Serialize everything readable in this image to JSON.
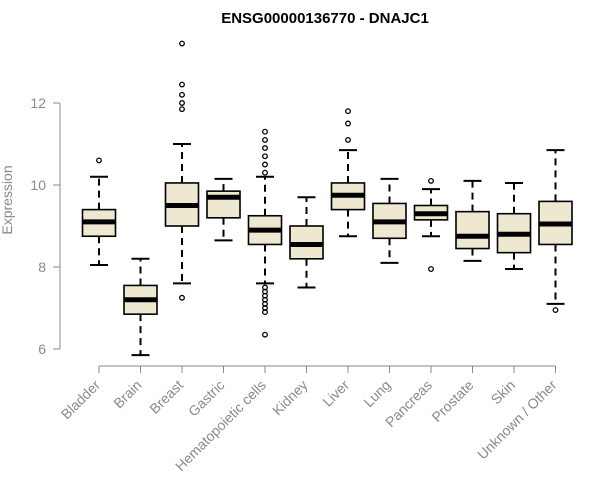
{
  "chart_data": {
    "type": "boxplot",
    "title": "ENSG00000136770 - DNAJC1",
    "xlabel": "",
    "ylabel": "Expression",
    "ylim": [
      5.8,
      13.5
    ],
    "yticks": [
      6,
      8,
      10,
      12
    ],
    "colors": {
      "box_fill": "#efe8d0",
      "box_stroke": "#000000",
      "axis": "#8a8a8a"
    },
    "categories": [
      "Bladder",
      "Brain",
      "Breast",
      "Gastric",
      "Hematopoietic cells",
      "Kidney",
      "Liver",
      "Lung",
      "Pancreas",
      "Prostate",
      "Skin",
      "Unknown / Other"
    ],
    "boxes": [
      {
        "name": "Bladder",
        "whisker_low": 8.05,
        "q1": 8.75,
        "median": 9.1,
        "q3": 9.4,
        "whisker_high": 10.2,
        "outliers": [
          10.6
        ]
      },
      {
        "name": "Brain",
        "whisker_low": 5.85,
        "q1": 6.85,
        "median": 7.2,
        "q3": 7.55,
        "whisker_high": 8.2,
        "outliers": []
      },
      {
        "name": "Breast",
        "whisker_low": 7.6,
        "q1": 9.0,
        "median": 9.5,
        "q3": 10.05,
        "whisker_high": 11.0,
        "outliers": [
          7.25,
          11.85,
          12.0,
          12.2,
          12.45,
          13.45
        ]
      },
      {
        "name": "Gastric",
        "whisker_low": 8.65,
        "q1": 9.2,
        "median": 9.7,
        "q3": 9.85,
        "whisker_high": 10.15,
        "outliers": []
      },
      {
        "name": "Hematopoietic cells",
        "whisker_low": 7.6,
        "q1": 8.55,
        "median": 8.9,
        "q3": 9.25,
        "whisker_high": 10.2,
        "outliers": [
          6.35,
          6.9,
          7.0,
          7.1,
          7.2,
          7.3,
          7.4,
          7.5,
          10.3,
          10.5,
          10.7,
          10.9,
          11.1,
          11.3
        ]
      },
      {
        "name": "Kidney",
        "whisker_low": 7.5,
        "q1": 8.2,
        "median": 8.55,
        "q3": 9.0,
        "whisker_high": 9.7,
        "outliers": []
      },
      {
        "name": "Liver",
        "whisker_low": 8.75,
        "q1": 9.4,
        "median": 9.75,
        "q3": 10.05,
        "whisker_high": 10.85,
        "outliers": [
          11.1,
          11.5,
          11.8
        ]
      },
      {
        "name": "Lung",
        "whisker_low": 8.1,
        "q1": 8.7,
        "median": 9.1,
        "q3": 9.55,
        "whisker_high": 10.15,
        "outliers": []
      },
      {
        "name": "Pancreas",
        "whisker_low": 8.75,
        "q1": 9.15,
        "median": 9.3,
        "q3": 9.5,
        "whisker_high": 9.9,
        "outliers": [
          7.95,
          10.1
        ]
      },
      {
        "name": "Prostate",
        "whisker_low": 8.15,
        "q1": 8.45,
        "median": 8.75,
        "q3": 9.35,
        "whisker_high": 10.1,
        "outliers": []
      },
      {
        "name": "Skin",
        "whisker_low": 7.95,
        "q1": 8.35,
        "median": 8.8,
        "q3": 9.3,
        "whisker_high": 10.05,
        "outliers": []
      },
      {
        "name": "Unknown / Other",
        "whisker_low": 7.1,
        "q1": 8.55,
        "median": 9.05,
        "q3": 9.6,
        "whisker_high": 10.85,
        "outliers": [
          6.95
        ]
      }
    ]
  }
}
